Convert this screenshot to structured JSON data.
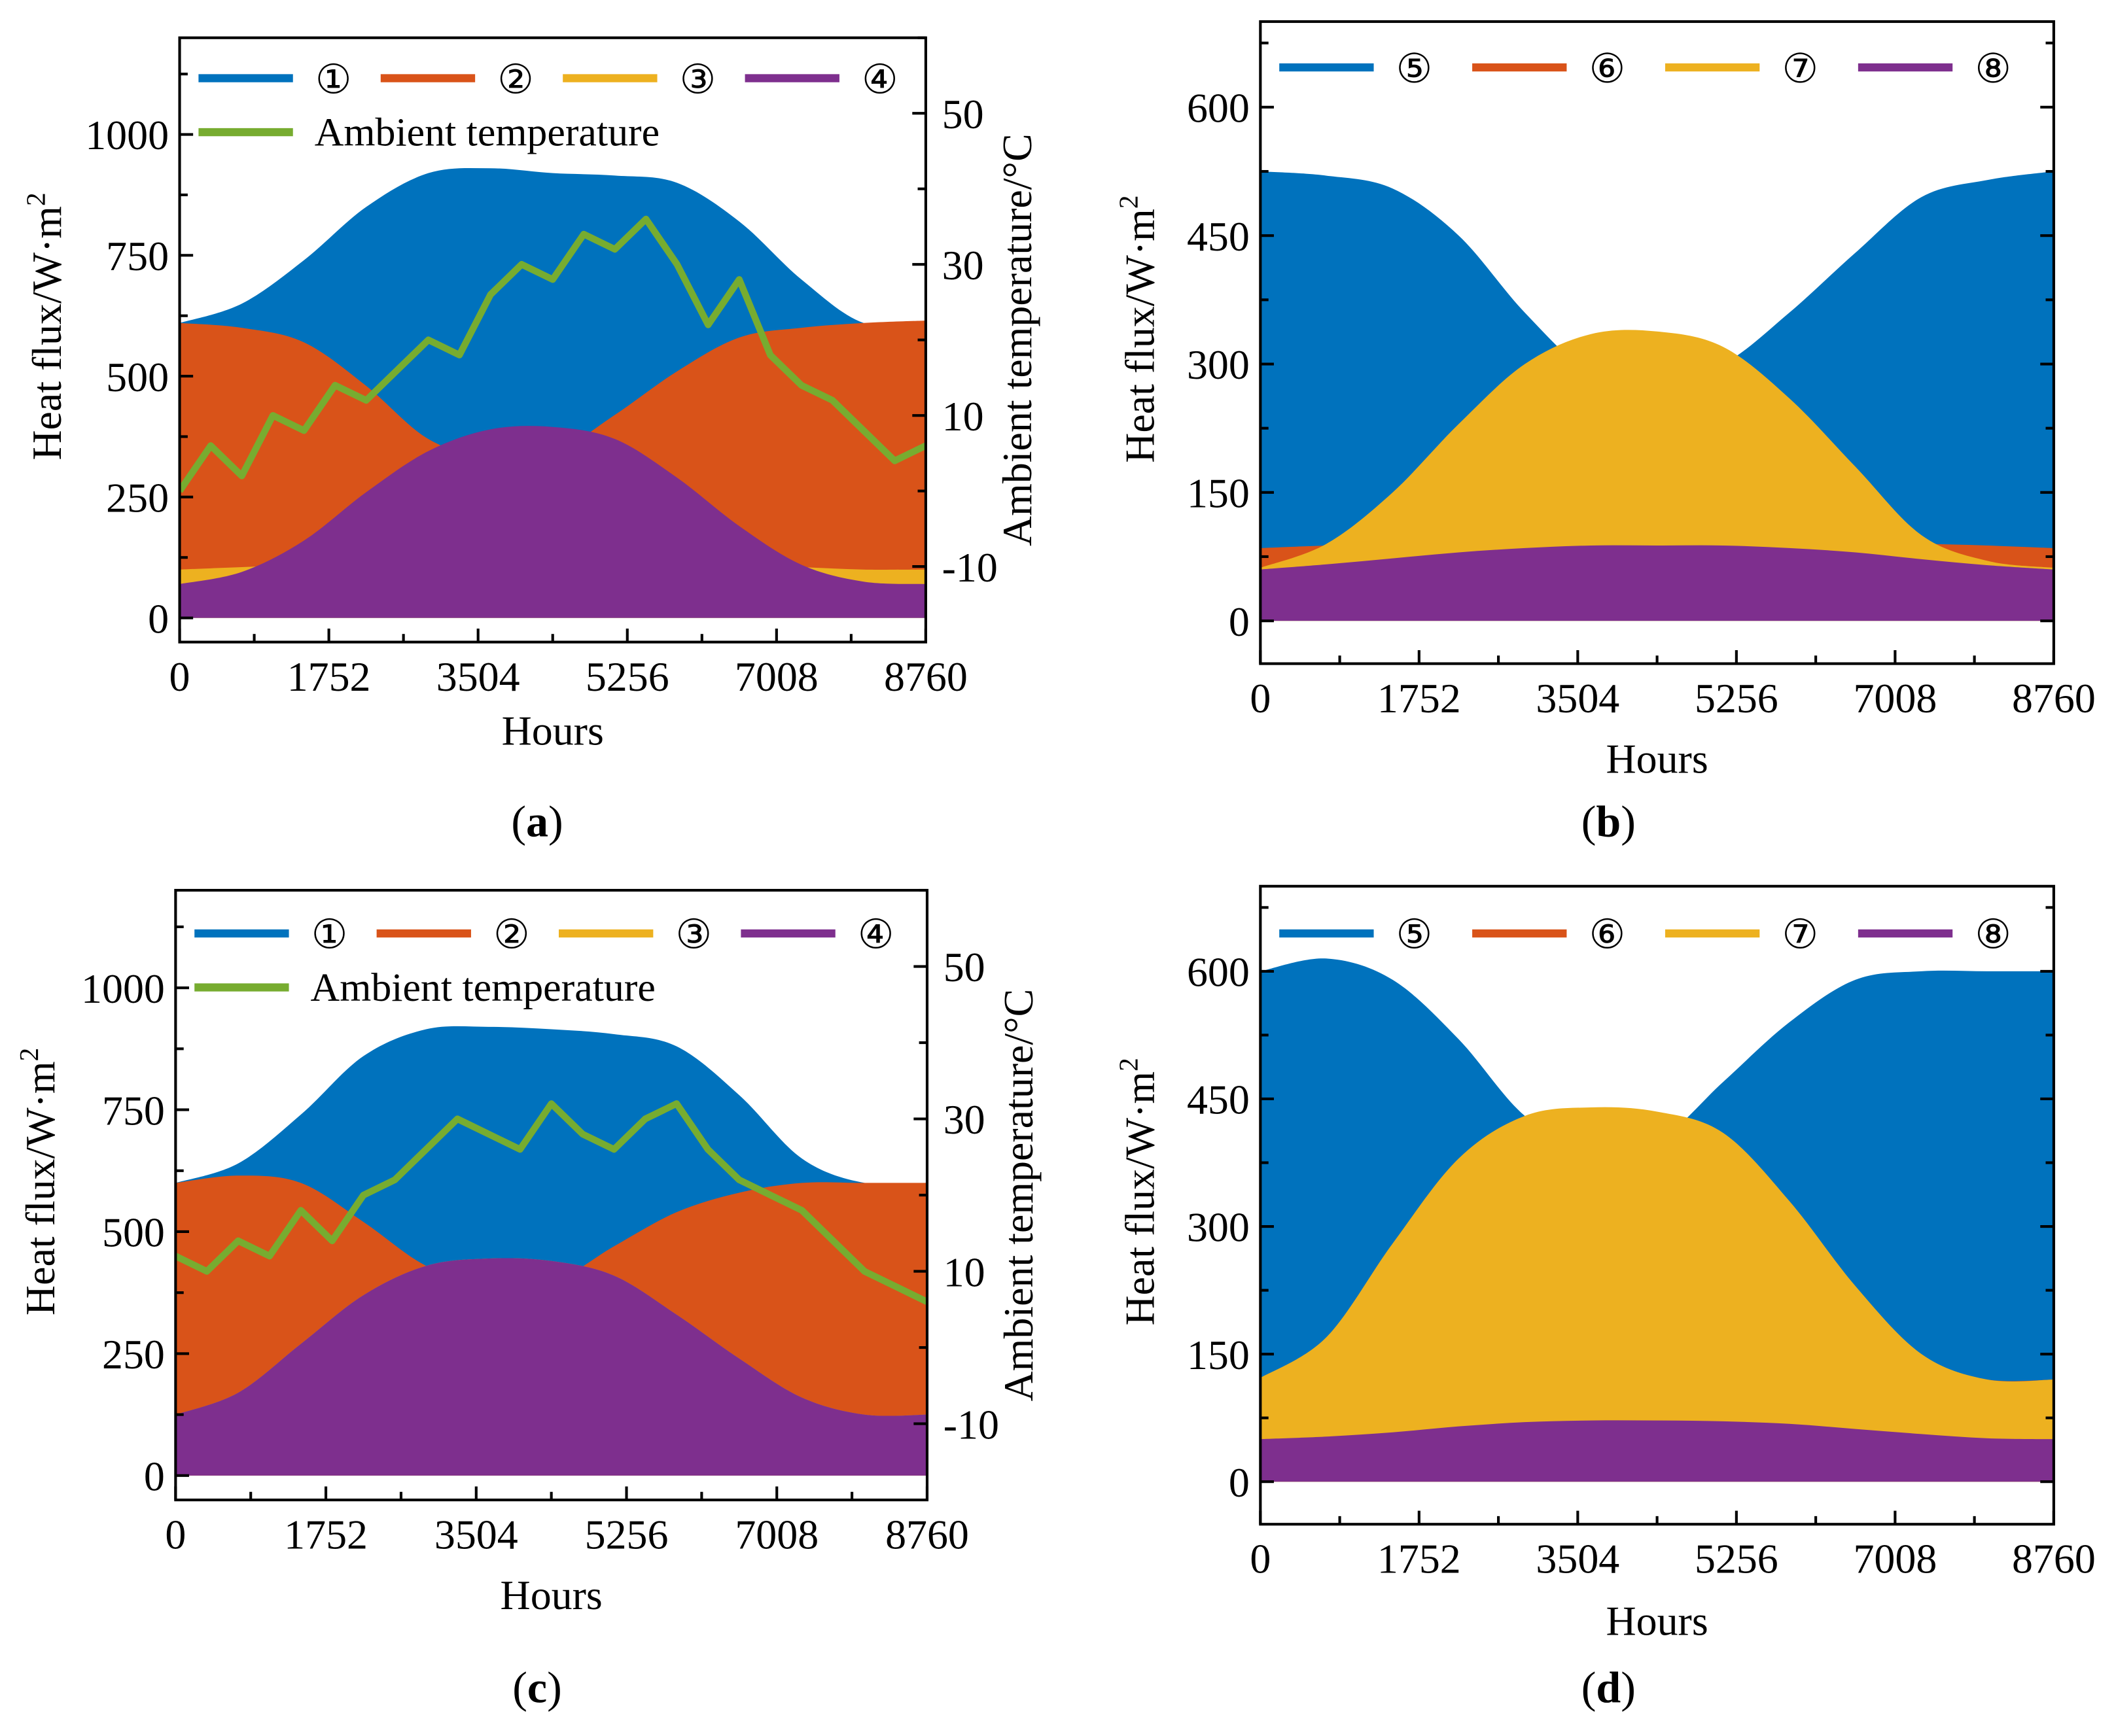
{
  "chart_data": [
    {
      "panel": "(a)",
      "panel_letter": "a",
      "type": "area",
      "xlabel": "Hours",
      "ylabel": "Heat flux/W·m",
      "ylabel_sup": "2",
      "y2label": "Ambient temperature/°C",
      "xlim": [
        0,
        8760
      ],
      "ylim": [
        -50,
        1200
      ],
      "y2lim": [
        -20,
        60
      ],
      "xticks": [
        0,
        1752,
        3504,
        5256,
        7008,
        8760
      ],
      "yticks": [
        0,
        250,
        500,
        750,
        1000
      ],
      "y2ticks": [
        -10,
        10,
        30,
        50
      ],
      "legend": "top",
      "x": [
        0,
        730,
        1460,
        2190,
        2920,
        3650,
        4380,
        5110,
        5840,
        6570,
        7300,
        8030,
        8760
      ],
      "series": [
        {
          "name": "①",
          "color": "#0072BD",
          "values": [
            610,
            650,
            740,
            850,
            920,
            930,
            920,
            915,
            900,
            820,
            700,
            610,
            610
          ]
        },
        {
          "name": "②",
          "color": "#D95319",
          "values": [
            610,
            600,
            570,
            480,
            370,
            330,
            340,
            420,
            510,
            580,
            600,
            610,
            615
          ]
        },
        {
          "name": "③",
          "color": "#EDB120",
          "values": [
            100,
            105,
            110,
            110,
            110,
            110,
            110,
            110,
            110,
            110,
            105,
            100,
            100
          ]
        },
        {
          "name": "④",
          "color": "#7E2F8E",
          "values": [
            70,
            95,
            160,
            260,
            345,
            390,
            395,
            370,
            290,
            190,
            110,
            75,
            70
          ]
        }
      ],
      "line_series": {
        "name": "Ambient temperature",
        "color": "#77AC30",
        "axis": "right",
        "x": [
          0,
          365,
          730,
          1095,
          1460,
          1825,
          2190,
          2555,
          2920,
          3285,
          3650,
          4015,
          4380,
          4745,
          5110,
          5475,
          5840,
          6205,
          6570,
          6935,
          7300,
          7665,
          8030,
          8395,
          8760
        ],
        "values": [
          0,
          6,
          2,
          10,
          8,
          14,
          12,
          16,
          20,
          18,
          26,
          30,
          28,
          34,
          32,
          36,
          30,
          22,
          28,
          18,
          14,
          12,
          8,
          4,
          6
        ]
      }
    },
    {
      "panel": "(b)",
      "panel_letter": "b",
      "type": "area",
      "xlabel": "Hours",
      "ylabel": "Heat flux/W·m",
      "ylabel_sup": "2",
      "xlim": [
        0,
        8760
      ],
      "ylim": [
        -50,
        700
      ],
      "xticks": [
        0,
        1752,
        3504,
        5256,
        7008,
        8760
      ],
      "yticks": [
        0,
        150,
        300,
        450,
        600
      ],
      "legend": "top",
      "x": [
        0,
        730,
        1460,
        2190,
        2920,
        3650,
        4380,
        5110,
        5840,
        6570,
        7300,
        8030,
        8760
      ],
      "series": [
        {
          "name": "⑤",
          "color": "#0072BD",
          "values": [
            525,
            520,
            505,
            450,
            360,
            290,
            280,
            300,
            360,
            430,
            495,
            515,
            525
          ]
        },
        {
          "name": "⑥",
          "color": "#D95319",
          "values": [
            85,
            88,
            90,
            90,
            90,
            90,
            90,
            90,
            90,
            90,
            90,
            88,
            85
          ]
        },
        {
          "name": "⑦",
          "color": "#EDB120",
          "values": [
            62,
            90,
            150,
            230,
            300,
            335,
            338,
            320,
            260,
            180,
            100,
            70,
            62
          ]
        },
        {
          "name": "⑧",
          "color": "#7E2F8E",
          "values": [
            60,
            66,
            73,
            80,
            85,
            88,
            88,
            88,
            85,
            80,
            72,
            65,
            60
          ]
        }
      ]
    },
    {
      "panel": "(c)",
      "panel_letter": "c",
      "type": "area",
      "xlabel": "Hours",
      "ylabel": "Heat flux/W·m",
      "ylabel_sup": "2",
      "y2label": "Ambient temperature/°C",
      "xlim": [
        0,
        8760
      ],
      "ylim": [
        -50,
        1200
      ],
      "y2lim": [
        -20,
        60
      ],
      "xticks": [
        0,
        1752,
        3504,
        5256,
        7008,
        8760
      ],
      "yticks": [
        0,
        250,
        500,
        750,
        1000
      ],
      "y2ticks": [
        -10,
        10,
        30,
        50
      ],
      "legend": "top",
      "x": [
        0,
        730,
        1460,
        2190,
        2920,
        3650,
        4380,
        5110,
        5840,
        6570,
        7300,
        8030,
        8760
      ],
      "series": [
        {
          "name": "①",
          "color": "#0072BD",
          "values": [
            600,
            640,
            740,
            860,
            915,
            920,
            915,
            905,
            880,
            780,
            650,
            600,
            600
          ]
        },
        {
          "name": "②",
          "color": "#D95319",
          "values": [
            600,
            615,
            600,
            520,
            430,
            390,
            395,
            470,
            540,
            580,
            600,
            600,
            600
          ]
        },
        {
          "name": "③",
          "color": "#EDB120",
          "values": [
            125,
            170,
            270,
            370,
            430,
            445,
            440,
            410,
            330,
            240,
            160,
            125,
            125
          ]
        },
        {
          "name": "④",
          "color": "#7E2F8E",
          "values": [
            125,
            170,
            270,
            370,
            430,
            445,
            440,
            410,
            330,
            240,
            160,
            125,
            125
          ]
        }
      ],
      "line_series": {
        "name": "Ambient temperature",
        "color": "#77AC30",
        "axis": "right",
        "x": [
          0,
          365,
          730,
          1095,
          1460,
          1825,
          2190,
          2555,
          2920,
          3285,
          3650,
          4015,
          4380,
          4745,
          5110,
          5475,
          5840,
          6205,
          6570,
          6935,
          7300,
          7665,
          8030,
          8395,
          8760
        ],
        "values": [
          12,
          10,
          14,
          12,
          18,
          14,
          20,
          22,
          26,
          30,
          28,
          26,
          32,
          28,
          26,
          30,
          32,
          26,
          22,
          20,
          18,
          14,
          10,
          8,
          6
        ]
      }
    },
    {
      "panel": "(d)",
      "panel_letter": "d",
      "type": "area",
      "xlabel": "Hours",
      "ylabel": "Heat flux/W·m",
      "ylabel_sup": "2",
      "xlim": [
        0,
        8760
      ],
      "ylim": [
        -50,
        700
      ],
      "xticks": [
        0,
        1752,
        3504,
        5256,
        7008,
        8760
      ],
      "yticks": [
        0,
        150,
        300,
        450,
        600
      ],
      "legend": "top",
      "x": [
        0,
        730,
        1460,
        2190,
        2920,
        3650,
        4380,
        5110,
        5840,
        6570,
        7300,
        8030,
        8760
      ],
      "series": [
        {
          "name": "⑤",
          "color": "#0072BD",
          "values": [
            600,
            615,
            590,
            520,
            430,
            390,
            400,
            470,
            540,
            590,
            600,
            600,
            600
          ]
        },
        {
          "name": "⑥",
          "color": "#D95319",
          "values": [
            120,
            165,
            275,
            375,
            425,
            435,
            430,
            405,
            325,
            225,
            145,
            120,
            120
          ]
        },
        {
          "name": "⑦",
          "color": "#EDB120",
          "values": [
            122,
            170,
            280,
            380,
            430,
            440,
            435,
            410,
            330,
            230,
            150,
            120,
            120
          ]
        },
        {
          "name": "⑧",
          "color": "#7E2F8E",
          "values": [
            50,
            53,
            58,
            65,
            70,
            72,
            72,
            71,
            68,
            62,
            56,
            51,
            50
          ]
        }
      ]
    }
  ]
}
